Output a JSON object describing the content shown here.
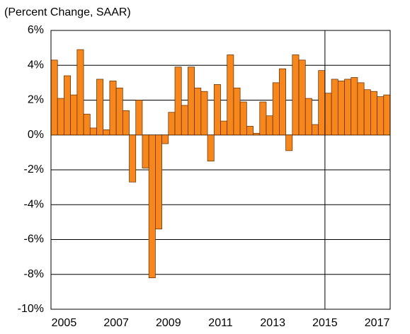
{
  "chart_data": {
    "type": "bar",
    "title": "(Percent Change, SAAR)",
    "categories": [
      null,
      "2005",
      null,
      null,
      null,
      null,
      null,
      null,
      null,
      "2007",
      null,
      null,
      null,
      null,
      null,
      null,
      null,
      "2009",
      null,
      null,
      null,
      null,
      null,
      null,
      null,
      "2011",
      null,
      null,
      null,
      null,
      null,
      null,
      null,
      "2013",
      null,
      null,
      null,
      null,
      null,
      null,
      null,
      "2015",
      null,
      null,
      null,
      null,
      null,
      null,
      null,
      "2017",
      null,
      null
    ],
    "values": [
      4.3,
      2.1,
      3.4,
      2.3,
      4.9,
      1.2,
      0.4,
      3.2,
      0.3,
      3.1,
      2.7,
      1.4,
      -2.7,
      2.0,
      -1.9,
      -8.2,
      -5.4,
      -0.5,
      1.3,
      3.9,
      1.7,
      3.9,
      2.7,
      2.5,
      -1.5,
      2.9,
      0.8,
      4.6,
      2.7,
      1.9,
      0.5,
      0.1,
      1.9,
      1.1,
      3.0,
      3.8,
      -0.9,
      4.6,
      4.3,
      2.1,
      0.6,
      3.7,
      2.4,
      3.2,
      3.1,
      3.2,
      3.3,
      3.0,
      2.6,
      2.5,
      2.2,
      2.3
    ],
    "color": "#f7861c",
    "ylim": [
      -10,
      6
    ],
    "yticks": [
      {
        "value": -10,
        "label": "-10%"
      },
      {
        "value": -8,
        "label": "-8%"
      },
      {
        "value": -6,
        "label": "-6%"
      },
      {
        "value": -4,
        "label": "-4%"
      },
      {
        "value": -2,
        "label": "-2%"
      },
      {
        "value": 0,
        "label": "0%"
      },
      {
        "value": 2,
        "label": "2%"
      },
      {
        "value": 4,
        "label": "4%"
      },
      {
        "value": 6,
        "label": "6%"
      }
    ],
    "grid": true
  }
}
